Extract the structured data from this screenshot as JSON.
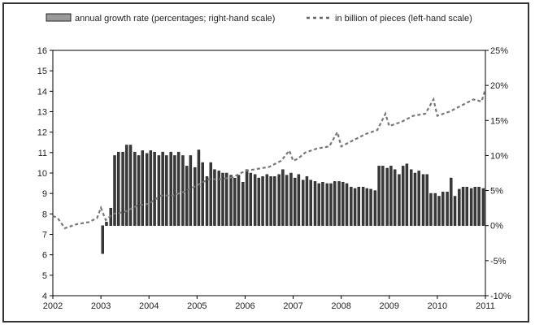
{
  "chart_data": {
    "type": "bar",
    "legend": {
      "placement": "top",
      "bar_label": "annual growth rate (percentages; right-hand scale)",
      "line_label": "in billion of pieces (left-hand scale)"
    },
    "x_axis": {
      "ticks": [
        "2002",
        "2003",
        "2004",
        "2005",
        "2006",
        "2007",
        "2008",
        "2009",
        "2010",
        "2011"
      ],
      "range": [
        2002,
        2011
      ]
    },
    "y_left": {
      "range": [
        4,
        16
      ],
      "ticks": [
        "4",
        "5",
        "6",
        "7",
        "8",
        "9",
        "10",
        "11",
        "12",
        "13",
        "14",
        "15",
        "16"
      ]
    },
    "y_right": {
      "range": [
        -10,
        25
      ],
      "ticks": [
        "-10%",
        "-5%",
        "0%",
        "5%",
        "10%",
        "15%",
        "20%",
        "25%"
      ]
    },
    "colors": {
      "bar": "#3a3a3a",
      "line": "#777777",
      "axis": "#000000"
    },
    "series": [
      {
        "name": "annual growth rate (percentages; right-hand scale)",
        "type": "bar",
        "axis": "right",
        "x": [
          2003.0,
          2003.08,
          2003.17,
          2003.25,
          2003.33,
          2003.42,
          2003.5,
          2003.58,
          2003.67,
          2003.75,
          2003.83,
          2003.92,
          2004.0,
          2004.08,
          2004.17,
          2004.25,
          2004.33,
          2004.42,
          2004.5,
          2004.58,
          2004.67,
          2004.75,
          2004.83,
          2004.92,
          2005.0,
          2005.08,
          2005.17,
          2005.25,
          2005.33,
          2005.42,
          2005.5,
          2005.58,
          2005.67,
          2005.75,
          2005.83,
          2005.92,
          2006.0,
          2006.08,
          2006.17,
          2006.25,
          2006.33,
          2006.42,
          2006.5,
          2006.58,
          2006.67,
          2006.75,
          2006.83,
          2006.92,
          2007.0,
          2007.08,
          2007.17,
          2007.25,
          2007.33,
          2007.42,
          2007.5,
          2007.58,
          2007.67,
          2007.75,
          2007.83,
          2007.92,
          2008.0,
          2008.08,
          2008.17,
          2008.25,
          2008.33,
          2008.42,
          2008.5,
          2008.58,
          2008.67,
          2008.75,
          2008.83,
          2008.92,
          2009.0,
          2009.08,
          2009.17,
          2009.25,
          2009.33,
          2009.42,
          2009.5,
          2009.58,
          2009.67,
          2009.75,
          2009.83,
          2009.92,
          2010.0,
          2010.08,
          2010.17,
          2010.25,
          2010.33,
          2010.42,
          2010.5,
          2010.58,
          2010.67,
          2010.75,
          2010.83,
          2010.92
        ],
        "values": [
          -4.0,
          0.5,
          2.5,
          10.0,
          10.5,
          10.5,
          11.5,
          11.5,
          10.5,
          10.0,
          10.7,
          10.3,
          10.7,
          10.5,
          10.0,
          10.5,
          10.0,
          10.5,
          10.0,
          10.5,
          10.0,
          8.5,
          10.0,
          8.3,
          10.8,
          9.0,
          7.0,
          9.0,
          8.0,
          7.8,
          7.5,
          7.5,
          7.2,
          6.8,
          7.2,
          6.2,
          8.0,
          7.5,
          7.3,
          6.8,
          7.0,
          7.3,
          7.0,
          7.0,
          7.3,
          8.0,
          7.2,
          7.5,
          6.8,
          7.3,
          6.5,
          7.0,
          6.5,
          6.3,
          6.0,
          6.2,
          6.0,
          6.0,
          6.3,
          6.3,
          6.2,
          6.0,
          5.5,
          5.3,
          5.5,
          5.5,
          5.3,
          5.2,
          5.0,
          8.5,
          8.5,
          8.2,
          8.5,
          8.0,
          7.3,
          8.5,
          8.8,
          8.0,
          7.5,
          7.8,
          7.3,
          7.3,
          4.6,
          4.6,
          4.2,
          4.8,
          4.8,
          6.8,
          4.2,
          5.2,
          5.5,
          5.5,
          5.3,
          5.5,
          5.5,
          5.3
        ]
      },
      {
        "name": "in billion of pieces (left-hand scale)",
        "type": "line",
        "axis": "left",
        "x": [
          2002.0,
          2002.1,
          2002.25,
          2002.5,
          2002.75,
          2002.92,
          2003.0,
          2003.1,
          2003.25,
          2003.5,
          2003.75,
          2004.0,
          2004.25,
          2004.5,
          2004.75,
          2005.0,
          2005.25,
          2005.5,
          2005.75,
          2006.0,
          2006.25,
          2006.5,
          2006.75,
          2006.92,
          2007.0,
          2007.1,
          2007.25,
          2007.5,
          2007.75,
          2007.92,
          2008.0,
          2008.25,
          2008.5,
          2008.75,
          2008.92,
          2009.0,
          2009.25,
          2009.5,
          2009.75,
          2009.92,
          2010.0,
          2010.25,
          2010.5,
          2010.75,
          2010.92,
          2011.0
        ],
        "values": [
          7.9,
          7.8,
          7.3,
          7.5,
          7.6,
          7.8,
          8.3,
          7.7,
          8.0,
          8.1,
          8.4,
          8.5,
          8.9,
          8.9,
          9.1,
          9.4,
          9.7,
          9.7,
          9.8,
          10.1,
          10.2,
          10.3,
          10.6,
          11.1,
          10.6,
          10.7,
          11.0,
          11.2,
          11.3,
          12.0,
          11.3,
          11.6,
          11.9,
          12.1,
          12.9,
          12.3,
          12.5,
          12.8,
          12.9,
          13.6,
          12.8,
          13.0,
          13.3,
          13.6,
          13.5,
          14.1
        ]
      }
    ]
  }
}
